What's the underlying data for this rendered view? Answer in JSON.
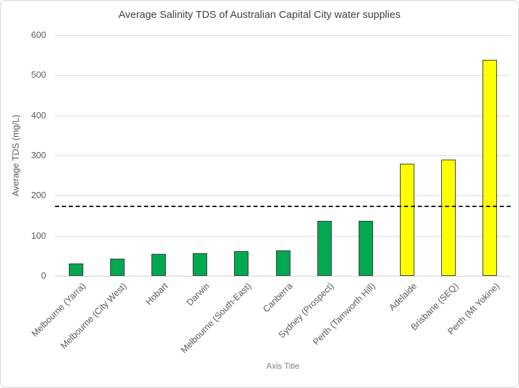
{
  "chart": {
    "title": "Average Salinity TDS of Australian Capital City water supplies",
    "y_axis_title": "Average TDS (mg/L)",
    "x_axis_title": "Axis Title"
  },
  "chart_data": {
    "type": "bar",
    "title": "Average Salinity TDS of Australian Capital City water supplies",
    "xlabel": "Axis Title",
    "ylabel": "Average TDS (mg/L)",
    "ylim": [
      0,
      600
    ],
    "ytick_interval": 100,
    "yticks": [
      0,
      100,
      200,
      300,
      400,
      500,
      600
    ],
    "grid": "horizontal",
    "legend": "none",
    "categories": [
      "Melbourne (Yarra)",
      "Melbourne (City West)",
      "Hobart",
      "Darwin",
      "Melbourne (South-East)",
      "Canberra",
      "Sydney (Prospect)",
      "Perth (Tamworth Hill)",
      "Adelaide",
      "Brisbane (SEQ)",
      "Perth (Mt Yokine)"
    ],
    "values": [
      31,
      43,
      55,
      56,
      62,
      64,
      138,
      137,
      280,
      290,
      538
    ],
    "bar_colors": [
      "#00A850",
      "#00A850",
      "#00A850",
      "#00A850",
      "#00A850",
      "#00A850",
      "#00A850",
      "#00A850",
      "#FFFF00",
      "#FFFF00",
      "#FFFF00"
    ],
    "reference_line": {
      "value": 175,
      "style": "dashed",
      "color": "#141414"
    },
    "colors": {
      "green_bar": "#00A850",
      "yellow_bar": "#FFFF00",
      "bar_border": "#3F3F3F",
      "gridline": "#DCDCDC",
      "axis_text": "#595959",
      "title_text": "#3F3F3F"
    }
  }
}
